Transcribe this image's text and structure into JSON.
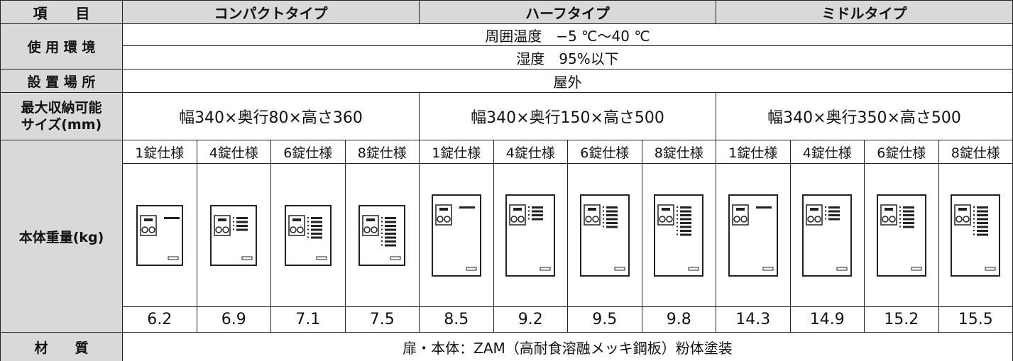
{
  "table": {
    "header": [
      "項　　目",
      "コンパクトタイプ",
      "ハーフタイプ",
      "ミドルタイプ"
    ],
    "environment": {
      "label": "使 用 環 境",
      "temperature": "周囲温度　−5 ℃〜40 ℃",
      "humidity": "湿度　95%以下"
    },
    "location": {
      "label": "設 置 場 所",
      "value": "屋外"
    },
    "max_size": {
      "label": [
        "最大収納可能",
        "サイズ(mm)"
      ],
      "values": [
        "幅340×奥行80×高さ360",
        "幅340×奥行150×高さ500",
        "幅340×奥行350×高さ500"
      ]
    },
    "weight": {
      "label": "本体重量(kg)",
      "specs": [
        "1錠仕様",
        "4錠仕様",
        "6錠仕様",
        "8錠仕様",
        "1錠仕様",
        "4錠仕様",
        "6錠仕様",
        "8錠仕様",
        "1錠仕様",
        "4錠仕様",
        "6錠仕様",
        "8錠仕様"
      ],
      "values": [
        6.2,
        6.9,
        7.1,
        7.5,
        8.5,
        9.2,
        9.5,
        9.8,
        14.3,
        14.9,
        15.2,
        15.5
      ]
    },
    "material": {
      "label": "材　　質",
      "value": "扉・本体：ZAM（高耐食溶融メッキ鋼板）粉体塗装"
    }
  }
}
